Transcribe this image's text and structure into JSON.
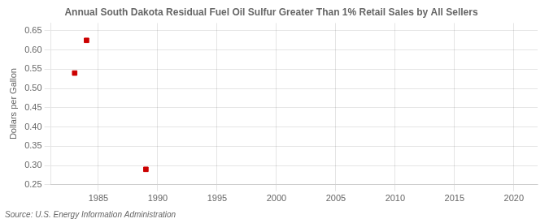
{
  "chart_data": {
    "type": "scatter",
    "title": "Annual South Dakota Residual Fuel Oil Sulfur Greater Than 1% Retail Sales by All Sellers",
    "ylabel": "Dollars per Gallon",
    "annotation": "Source: U.S. Energy Information Administration",
    "x": [
      1983,
      1984,
      1989
    ],
    "values": [
      0.54,
      0.625,
      0.29
    ],
    "color": "#cc0000",
    "marker": "square",
    "xlim": [
      1981,
      2022
    ],
    "ylim": [
      0.25,
      0.67
    ],
    "xticks": [
      1985,
      1990,
      1995,
      2000,
      2005,
      2010,
      2015,
      2020
    ],
    "yticks": [
      0.25,
      {
        "value": 0.3,
        "label": "0.30"
      },
      0.35,
      {
        "value": 0.4,
        "label": "0.40"
      },
      0.45,
      {
        "value": 0.5,
        "label": "0.50"
      },
      0.55,
      {
        "value": 0.6,
        "label": "0.60"
      },
      0.65
    ],
    "grid": true
  }
}
